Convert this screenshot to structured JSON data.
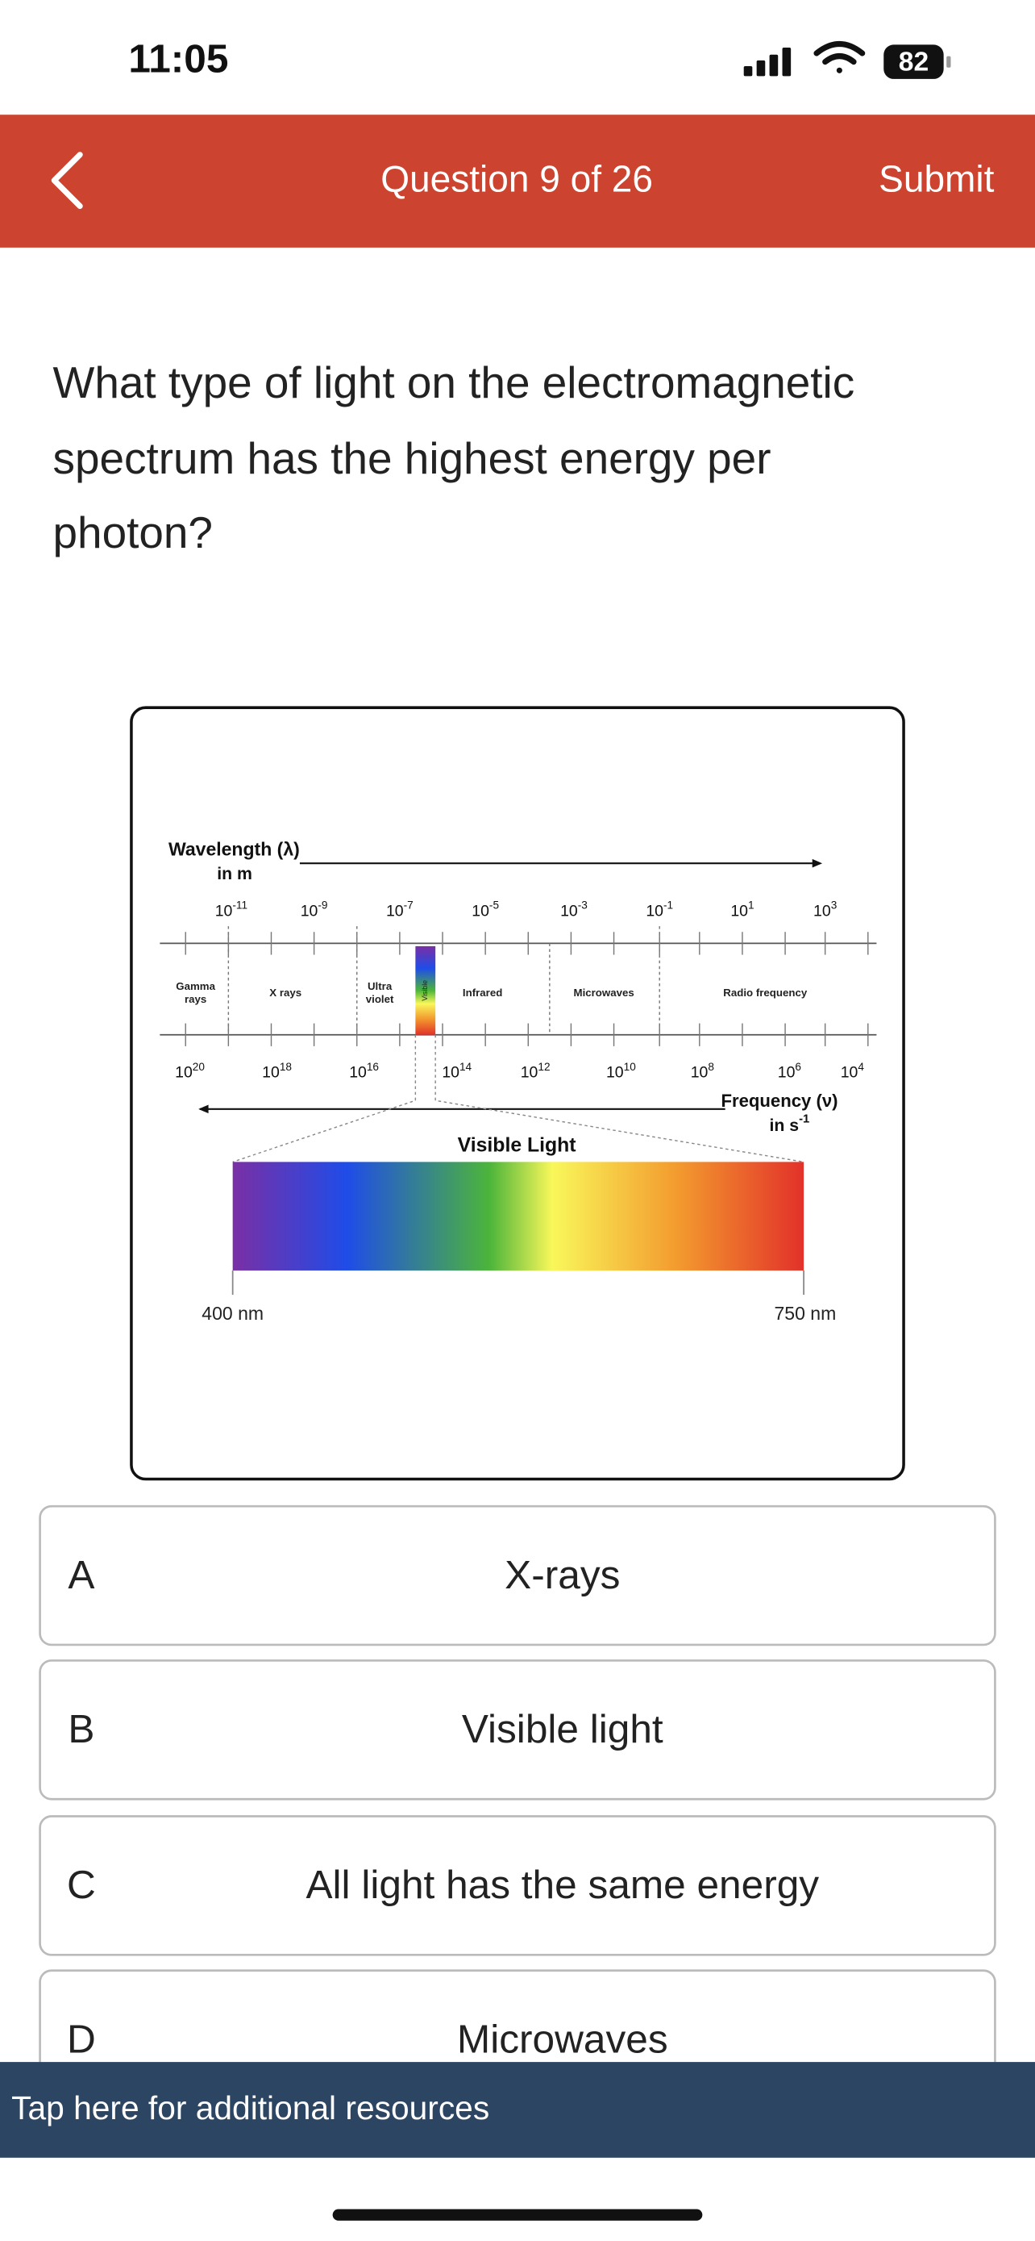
{
  "status_bar": {
    "time": "11:05",
    "battery": "82"
  },
  "header": {
    "title": "Question 9 of 26",
    "submit": "Submit"
  },
  "question": {
    "lines": [
      "What type of light on the electromagnetic",
      "spectrum has the highest energy per",
      "photon?"
    ]
  },
  "figure": {
    "wavelength_title": "Wavelength (λ)",
    "wavelength_unit": "in m",
    "wavelength_ticks": [
      {
        "base": "10",
        "exp": "-11"
      },
      {
        "base": "10",
        "exp": "-9"
      },
      {
        "base": "10",
        "exp": "-7"
      },
      {
        "base": "10",
        "exp": "-5"
      },
      {
        "base": "10",
        "exp": "-3"
      },
      {
        "base": "10",
        "exp": "-1"
      },
      {
        "base": "10",
        "exp": "1"
      },
      {
        "base": "10",
        "exp": "3"
      }
    ],
    "bands": [
      {
        "lines": [
          "Gamma",
          "rays"
        ]
      },
      {
        "lines": [
          "X rays"
        ]
      },
      {
        "lines": [
          "Ultra",
          "violet"
        ]
      },
      {
        "lines": [
          "Infrared"
        ]
      },
      {
        "lines": [
          "Microwaves"
        ]
      },
      {
        "lines": [
          "Radio frequency"
        ]
      }
    ],
    "visible_strip_label": "Visible",
    "frequency_ticks": [
      {
        "base": "10",
        "exp": "20"
      },
      {
        "base": "10",
        "exp": "18"
      },
      {
        "base": "10",
        "exp": "16"
      },
      {
        "base": "10",
        "exp": "14"
      },
      {
        "base": "10",
        "exp": "12"
      },
      {
        "base": "10",
        "exp": "10"
      },
      {
        "base": "10",
        "exp": "8"
      },
      {
        "base": "10",
        "exp": "6"
      },
      {
        "base": "10",
        "exp": "4"
      }
    ],
    "frequency_title": "Frequency (ν)",
    "frequency_unit": {
      "base": "in s",
      "exp": "-1"
    },
    "visible_title": "Visible Light",
    "visible_start": "400 nm",
    "visible_end": "750 nm"
  },
  "options": [
    {
      "letter": "A",
      "text": "X-rays"
    },
    {
      "letter": "B",
      "text": "Visible light"
    },
    {
      "letter": "C",
      "text": "All light has the same energy"
    },
    {
      "letter": "D",
      "text": "Microwaves"
    }
  ],
  "footer": "Tap here for additional resources"
}
